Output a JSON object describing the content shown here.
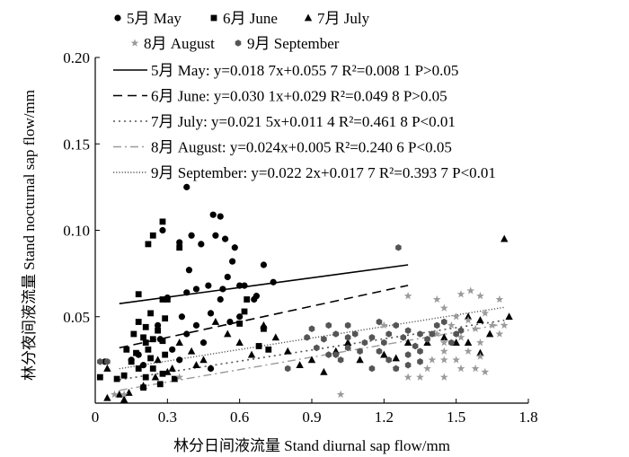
{
  "chart_data": {
    "type": "scatter",
    "xlabel": "林分日间液流量 Stand diurnal sap flow/mm",
    "ylabel": "林分夜间液流量 Stand nocturnal sap flow/mm",
    "xlim": [
      0,
      1.8
    ],
    "ylim": [
      0,
      0.2
    ],
    "x_ticks": [
      0,
      0.3,
      0.6,
      0.9,
      1.2,
      1.5,
      1.8
    ],
    "x_tick_labels": [
      "0",
      "0.3",
      "0.6",
      "0.9",
      "1.2",
      "1.5",
      "1.8"
    ],
    "y_ticks": [
      0.05,
      0.1,
      0.15,
      0.2
    ],
    "y_tick_labels": [
      "0.05",
      "0.10",
      "0.15",
      "0.20"
    ],
    "grid": false,
    "legend_position": "top-left",
    "series": [
      {
        "name": "5月 May",
        "marker": "circle",
        "color": "#000000",
        "fit": {
          "label": "5月 May: y=0.018 7x+0.055 7 R²=0.008 1 P>0.05",
          "slope": 0.0187,
          "intercept": 0.0557,
          "x_range": [
            0.1,
            1.3
          ],
          "style": "solid"
        },
        "points": [
          [
            0.38,
            0.125
          ],
          [
            0.28,
            0.1
          ],
          [
            0.35,
            0.093
          ],
          [
            0.4,
            0.097
          ],
          [
            0.44,
            0.092
          ],
          [
            0.49,
            0.109
          ],
          [
            0.52,
            0.108
          ],
          [
            0.5,
            0.097
          ],
          [
            0.54,
            0.095
          ],
          [
            0.58,
            0.09
          ],
          [
            0.57,
            0.082
          ],
          [
            0.39,
            0.077
          ],
          [
            0.55,
            0.073
          ],
          [
            0.6,
            0.068
          ],
          [
            0.62,
            0.068
          ],
          [
            0.47,
            0.068
          ],
          [
            0.53,
            0.066
          ],
          [
            0.42,
            0.066
          ],
          [
            0.38,
            0.064
          ],
          [
            0.74,
            0.07
          ],
          [
            0.7,
            0.08
          ],
          [
            0.67,
            0.062
          ],
          [
            0.66,
            0.06
          ],
          [
            0.3,
            0.061
          ],
          [
            0.52,
            0.06
          ],
          [
            0.48,
            0.052
          ],
          [
            0.36,
            0.05
          ],
          [
            0.6,
            0.05
          ],
          [
            0.56,
            0.047
          ],
          [
            0.42,
            0.045
          ],
          [
            0.26,
            0.045
          ],
          [
            0.38,
            0.04
          ],
          [
            0.45,
            0.035
          ],
          [
            0.27,
            0.037
          ],
          [
            0.32,
            0.031
          ],
          [
            0.35,
            0.025
          ],
          [
            0.48,
            0.02
          ],
          [
            0.18,
            0.028
          ],
          [
            0.2,
            0.022
          ],
          [
            0.15,
            0.025
          ],
          [
            0.04,
            0.024
          ]
        ]
      },
      {
        "name": "6月 June",
        "marker": "square",
        "color": "#000000",
        "fit": {
          "label": "6月 June: y=0.030 1x+0.029 R²=0.049 8 P>0.05",
          "slope": 0.0301,
          "intercept": 0.029,
          "x_range": [
            0.1,
            1.3
          ],
          "style": "dashed"
        },
        "points": [
          [
            0.28,
            0.105
          ],
          [
            0.24,
            0.097
          ],
          [
            0.22,
            0.092
          ],
          [
            0.35,
            0.09
          ],
          [
            0.18,
            0.063
          ],
          [
            0.28,
            0.06
          ],
          [
            0.3,
            0.06
          ],
          [
            0.23,
            0.052
          ],
          [
            0.29,
            0.049
          ],
          [
            0.18,
            0.047
          ],
          [
            0.21,
            0.044
          ],
          [
            0.26,
            0.042
          ],
          [
            0.16,
            0.04
          ],
          [
            0.2,
            0.038
          ],
          [
            0.24,
            0.037
          ],
          [
            0.21,
            0.035
          ],
          [
            0.28,
            0.036
          ],
          [
            0.13,
            0.031
          ],
          [
            0.17,
            0.029
          ],
          [
            0.22,
            0.031
          ],
          [
            0.29,
            0.028
          ],
          [
            0.23,
            0.026
          ],
          [
            0.15,
            0.024
          ],
          [
            0.18,
            0.02
          ],
          [
            0.24,
            0.02
          ],
          [
            0.28,
            0.017
          ],
          [
            0.12,
            0.016
          ],
          [
            0.21,
            0.015
          ],
          [
            0.09,
            0.014
          ],
          [
            0.33,
            0.014
          ],
          [
            0.27,
            0.011
          ],
          [
            0.2,
            0.009
          ],
          [
            0.63,
            0.06
          ],
          [
            0.62,
            0.053
          ],
          [
            0.7,
            0.043
          ],
          [
            0.6,
            0.046
          ],
          [
            0.68,
            0.033
          ],
          [
            0.72,
            0.031
          ],
          [
            0.02,
            0.015
          ]
        ]
      },
      {
        "name": "7月 July",
        "marker": "triangle",
        "color": "#000000",
        "fit": {
          "label": "7月 July: y=0.021 5x+0.011 4 R²=0.461 8 P<0.01",
          "slope": 0.0215,
          "intercept": 0.0114,
          "x_range": [
            0.1,
            1.7
          ],
          "style": "dotted"
        },
        "points": [
          [
            1.7,
            0.095
          ],
          [
            1.55,
            0.05
          ],
          [
            1.6,
            0.048
          ],
          [
            1.72,
            0.05
          ],
          [
            1.64,
            0.04
          ],
          [
            1.5,
            0.035
          ],
          [
            1.45,
            0.038
          ],
          [
            0.7,
            0.045
          ],
          [
            0.5,
            0.047
          ],
          [
            0.55,
            0.04
          ],
          [
            0.35,
            0.035
          ],
          [
            0.4,
            0.03
          ],
          [
            0.45,
            0.025
          ],
          [
            0.75,
            0.038
          ],
          [
            0.8,
            0.03
          ],
          [
            0.9,
            0.025
          ],
          [
            1.0,
            0.03
          ],
          [
            1.05,
            0.035
          ],
          [
            1.2,
            0.028
          ],
          [
            1.3,
            0.035
          ],
          [
            0.3,
            0.018
          ],
          [
            0.25,
            0.015
          ],
          [
            0.2,
            0.01
          ],
          [
            0.14,
            0.006
          ],
          [
            0.1,
            0.005
          ],
          [
            0.05,
            0.003
          ],
          [
            0.12,
            0.002
          ],
          [
            0.32,
            0.02
          ],
          [
            0.42,
            0.022
          ],
          [
            0.65,
            0.028
          ],
          [
            0.85,
            0.022
          ],
          [
            0.95,
            0.018
          ],
          [
            1.1,
            0.025
          ],
          [
            1.38,
            0.035
          ],
          [
            0.6,
            0.035
          ],
          [
            1.6,
            0.029
          ],
          [
            0.26,
            0.025
          ],
          [
            0.05,
            0.02
          ],
          [
            1.25,
            0.026
          ],
          [
            1.55,
            0.035
          ]
        ]
      },
      {
        "name": "8月 August",
        "marker": "star",
        "color": "#9a9a9a",
        "fit": {
          "label": "8月 August: y=0.024x+0.005 R²=0.240 6 P<0.05",
          "slope": 0.024,
          "intercept": 0.005,
          "x_range": [
            0.1,
            1.7
          ],
          "style": "dashdot"
        },
        "points": [
          [
            1.3,
            0.062
          ],
          [
            1.42,
            0.06
          ],
          [
            1.52,
            0.063
          ],
          [
            1.56,
            0.065
          ],
          [
            1.6,
            0.062
          ],
          [
            1.68,
            0.06
          ],
          [
            1.45,
            0.055
          ],
          [
            1.5,
            0.05
          ],
          [
            1.55,
            0.048
          ],
          [
            1.62,
            0.052
          ],
          [
            1.65,
            0.045
          ],
          [
            1.68,
            0.04
          ],
          [
            1.7,
            0.045
          ],
          [
            1.48,
            0.045
          ],
          [
            1.58,
            0.043
          ],
          [
            1.42,
            0.04
          ],
          [
            1.45,
            0.035
          ],
          [
            1.52,
            0.038
          ],
          [
            1.6,
            0.035
          ],
          [
            1.55,
            0.03
          ],
          [
            1.5,
            0.025
          ],
          [
            1.52,
            0.02
          ],
          [
            1.45,
            0.03
          ],
          [
            1.4,
            0.025
          ],
          [
            1.38,
            0.02
          ],
          [
            1.35,
            0.015
          ],
          [
            1.45,
            0.015
          ],
          [
            1.3,
            0.015
          ],
          [
            1.25,
            0.02
          ],
          [
            1.58,
            0.02
          ],
          [
            1.62,
            0.018
          ],
          [
            1.02,
            0.005
          ],
          [
            0.35,
            0.015
          ],
          [
            0.12,
            0.005
          ],
          [
            0.08,
            0.005
          ],
          [
            1.2,
            0.045
          ],
          [
            1.45,
            0.025
          ],
          [
            1.6,
            0.027
          ]
        ]
      },
      {
        "name": "9月 September",
        "marker": "hexagon",
        "color": "#555555",
        "fit": {
          "label": "9月 September: y=0.022 2x+0.017 7 R²=0.393 7 P<0.01",
          "slope": 0.0222,
          "intercept": 0.0177,
          "x_range": [
            0.1,
            1.7
          ],
          "style": "fine-dotted"
        },
        "points": [
          [
            1.26,
            0.09
          ],
          [
            1.18,
            0.047
          ],
          [
            1.25,
            0.045
          ],
          [
            1.3,
            0.042
          ],
          [
            1.35,
            0.04
          ],
          [
            1.22,
            0.04
          ],
          [
            1.15,
            0.038
          ],
          [
            1.08,
            0.04
          ],
          [
            1.05,
            0.038
          ],
          [
            1.0,
            0.04
          ],
          [
            0.95,
            0.037
          ],
          [
            1.12,
            0.035
          ],
          [
            1.2,
            0.035
          ],
          [
            1.28,
            0.038
          ],
          [
            1.33,
            0.033
          ],
          [
            1.1,
            0.03
          ],
          [
            1.05,
            0.032
          ],
          [
            1.0,
            0.028
          ],
          [
            0.92,
            0.032
          ],
          [
            0.88,
            0.038
          ],
          [
            0.9,
            0.043
          ],
          [
            0.97,
            0.045
          ],
          [
            1.4,
            0.04
          ],
          [
            1.38,
            0.037
          ],
          [
            1.35,
            0.03
          ],
          [
            1.42,
            0.045
          ],
          [
            1.45,
            0.047
          ],
          [
            1.5,
            0.04
          ],
          [
            1.52,
            0.042
          ],
          [
            1.48,
            0.035
          ],
          [
            1.3,
            0.028
          ],
          [
            1.18,
            0.03
          ],
          [
            1.22,
            0.025
          ],
          [
            0.97,
            0.028
          ],
          [
            1.02,
            0.025
          ],
          [
            1.15,
            0.02
          ],
          [
            1.25,
            0.02
          ],
          [
            1.3,
            0.022
          ],
          [
            1.35,
            0.024
          ],
          [
            0.8,
            0.02
          ],
          [
            0.05,
            0.024
          ],
          [
            0.02,
            0.024
          ],
          [
            1.05,
            0.045
          ]
        ]
      }
    ]
  }
}
